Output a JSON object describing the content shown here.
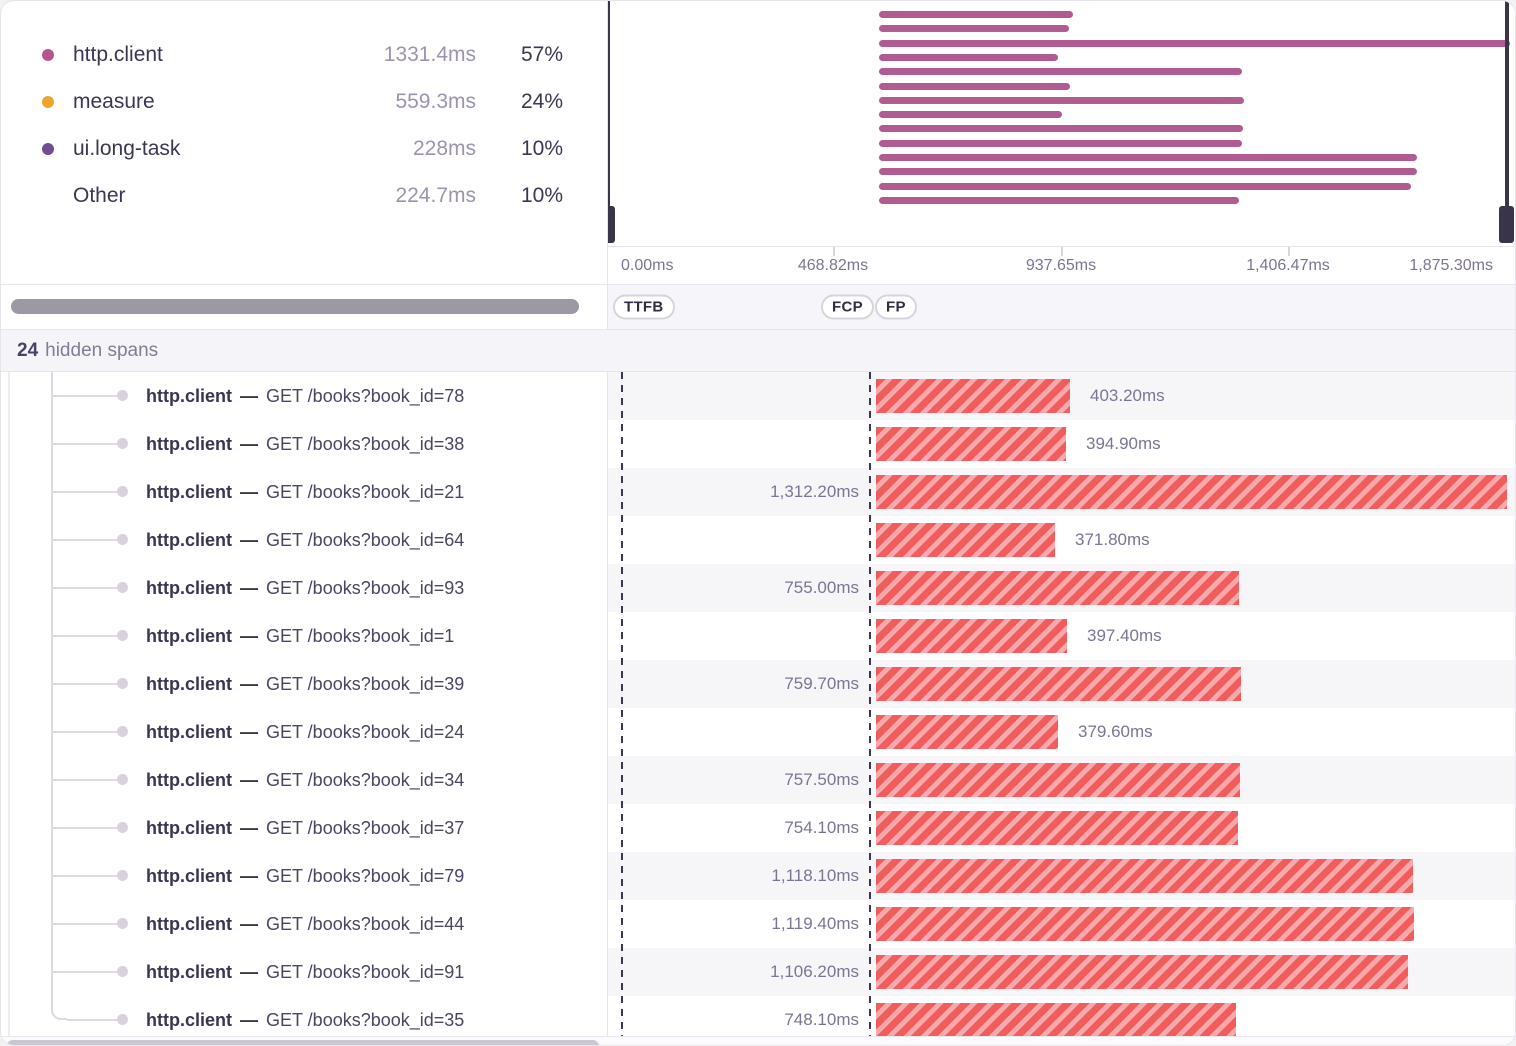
{
  "legend": {
    "items": [
      {
        "label": "http.client",
        "value": "1331.4ms",
        "percent": "57%",
        "color": "#b0588e"
      },
      {
        "label": "measure",
        "value": "559.3ms",
        "percent": "24%",
        "color": "#f0a42c"
      },
      {
        "label": "ui.long-task",
        "value": "228ms",
        "percent": "10%",
        "color": "#6f4d90"
      },
      {
        "label": "Other",
        "value": "224.7ms",
        "percent": "10%",
        "color": ""
      }
    ]
  },
  "minimap": {
    "trace_total_ms": 1875.3,
    "axis_labels": [
      "0.00ms",
      "468.82ms",
      "937.65ms",
      "1,406.47ms",
      "1,875.30ms"
    ]
  },
  "vitals": [
    {
      "label": "TTFB"
    },
    {
      "label": "FCP"
    },
    {
      "label": "FP"
    }
  ],
  "hidden_spans": {
    "count": "24",
    "label": "hidden spans"
  },
  "spans_meta": {
    "separator": "—"
  },
  "spans": [
    {
      "op": "http.client",
      "description": "GET /books?book_id=78",
      "duration_ms": 403.2,
      "duration_label": "403.20ms",
      "label_side": "right"
    },
    {
      "op": "http.client",
      "description": "GET /books?book_id=38",
      "duration_ms": 394.9,
      "duration_label": "394.90ms",
      "label_side": "right"
    },
    {
      "op": "http.client",
      "description": "GET /books?book_id=21",
      "duration_ms": 1312.2,
      "duration_label": "1,312.20ms",
      "label_side": "left"
    },
    {
      "op": "http.client",
      "description": "GET /books?book_id=64",
      "duration_ms": 371.8,
      "duration_label": "371.80ms",
      "label_side": "right"
    },
    {
      "op": "http.client",
      "description": "GET /books?book_id=93",
      "duration_ms": 755.0,
      "duration_label": "755.00ms",
      "label_side": "left"
    },
    {
      "op": "http.client",
      "description": "GET /books?book_id=1",
      "duration_ms": 397.4,
      "duration_label": "397.40ms",
      "label_side": "right"
    },
    {
      "op": "http.client",
      "description": "GET /books?book_id=39",
      "duration_ms": 759.7,
      "duration_label": "759.70ms",
      "label_side": "left"
    },
    {
      "op": "http.client",
      "description": "GET /books?book_id=24",
      "duration_ms": 379.6,
      "duration_label": "379.60ms",
      "label_side": "right"
    },
    {
      "op": "http.client",
      "description": "GET /books?book_id=34",
      "duration_ms": 757.5,
      "duration_label": "757.50ms",
      "label_side": "left"
    },
    {
      "op": "http.client",
      "description": "GET /books?book_id=37",
      "duration_ms": 754.1,
      "duration_label": "754.10ms",
      "label_side": "left"
    },
    {
      "op": "http.client",
      "description": "GET /books?book_id=79",
      "duration_ms": 1118.1,
      "duration_label": "1,118.10ms",
      "label_side": "left"
    },
    {
      "op": "http.client",
      "description": "GET /books?book_id=44",
      "duration_ms": 1119.4,
      "duration_label": "1,119.40ms",
      "label_side": "left"
    },
    {
      "op": "http.client",
      "description": "GET /books?book_id=91",
      "duration_ms": 1106.2,
      "duration_label": "1,106.20ms",
      "label_side": "left"
    },
    {
      "op": "http.client",
      "description": "GET /books?book_id=35",
      "duration_ms": 748.1,
      "duration_label": "748.10ms",
      "label_side": "left"
    }
  ],
  "palette": {
    "span_bar": "#f15d5d",
    "span_bar_stripe": "#f8a9ac",
    "minimap_bar": "#b15b93"
  }
}
